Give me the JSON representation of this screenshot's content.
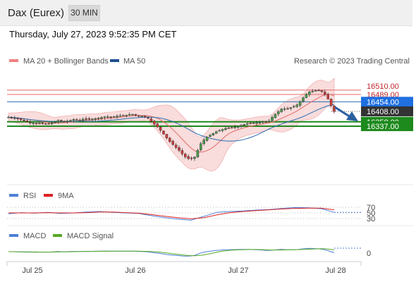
{
  "header": {
    "title": "Dax (Eurex)",
    "timeframe_button": "30 MIN",
    "timestamp": "Thursday, July 27, 2023 9:52:35 PM CET"
  },
  "legend": {
    "ma20_bb": "MA 20 + Bollinger Bands",
    "ma50": "MA 50",
    "credit": "Research © 2023 Trading Central",
    "rsi": "RSI",
    "rsi_ma": "9MA",
    "macd": "MACD",
    "macd_signal": "MACD Signal"
  },
  "colors": {
    "red_line": "#e36a6a",
    "blue_line": "#2a6fb0",
    "green_line": "#1d8a1d",
    "candle_up": "#4a9a4a",
    "candle_down": "#cc3a3a",
    "bb_fill": "#f7d0d0",
    "tag_blue": "#1f6fe0",
    "tag_dark": "#333333",
    "tag_green": "#1d8a1d",
    "arrow": "#2a5fa0"
  },
  "chart_data": [
    {
      "type": "candlestick",
      "title": "Dax (Eurex)",
      "ylim": [
        16080,
        16560
      ],
      "x_ticks": [
        "Jul 25",
        "Jul 26",
        "Jul 27",
        "Jul 28"
      ],
      "candle_count": 106,
      "close_path": [
        [
          0,
          16380
        ],
        [
          3,
          16375
        ],
        [
          6,
          16362
        ],
        [
          8,
          16355
        ],
        [
          11,
          16350
        ],
        [
          14,
          16348
        ],
        [
          17,
          16352
        ],
        [
          19,
          16365
        ],
        [
          21,
          16358
        ],
        [
          23,
          16362
        ],
        [
          25,
          16370
        ],
        [
          27,
          16365
        ],
        [
          29,
          16373
        ],
        [
          31,
          16370
        ],
        [
          33,
          16373
        ],
        [
          35,
          16378
        ],
        [
          37,
          16383
        ],
        [
          39,
          16380
        ],
        [
          41,
          16385
        ],
        [
          43,
          16388
        ],
        [
          45,
          16390
        ],
        [
          47,
          16395
        ],
        [
          49,
          16387
        ],
        [
          51,
          16385
        ],
        [
          53,
          16377
        ],
        [
          55,
          16352
        ],
        [
          57,
          16330
        ],
        [
          59,
          16300
        ],
        [
          61,
          16268
        ],
        [
          63,
          16244
        ],
        [
          65,
          16220
        ],
        [
          67,
          16192
        ],
        [
          69,
          16178
        ],
        [
          71,
          16190
        ],
        [
          73,
          16250
        ],
        [
          75,
          16280
        ],
        [
          77,
          16295
        ],
        [
          79,
          16310
        ],
        [
          81,
          16320
        ],
        [
          83,
          16328
        ],
        [
          85,
          16330
        ],
        [
          87,
          16335
        ],
        [
          89,
          16343
        ],
        [
          91,
          16350
        ],
        [
          93,
          16352
        ],
        [
          95,
          16355
        ],
        [
          97,
          16360
        ],
        [
          99,
          16358
        ],
        [
          100,
          16375
        ],
        [
          102,
          16400
        ],
        [
          104,
          16420
        ],
        [
          106,
          16420
        ],
        [
          108,
          16428
        ],
        [
          110,
          16440
        ],
        [
          112,
          16470
        ],
        [
          114,
          16500
        ],
        [
          116,
          16505
        ],
        [
          118,
          16510
        ],
        [
          120,
          16498
        ],
        [
          121,
          16480
        ],
        [
          122,
          16460
        ],
        [
          123,
          16430
        ],
        [
          124,
          16408
        ]
      ],
      "price_levels": [
        {
          "label": "16510.00",
          "value": 16510,
          "style": "red_line"
        },
        {
          "label": "16489.00",
          "value": 16489,
          "style": "red_line"
        },
        {
          "label": "16454.00",
          "value": 16454,
          "style": "tag_blue"
        },
        {
          "label": "16408.00",
          "value": 16408,
          "style": "tag_dark"
        },
        {
          "label": "16358.00",
          "value": 16358,
          "style": "green_line"
        },
        {
          "label": "16337.00",
          "value": 16337,
          "style": "green_line"
        }
      ],
      "indicators": [
        "MA 20 + Bollinger Bands",
        "MA 50"
      ]
    },
    {
      "type": "line",
      "name": "RSI panel",
      "series": [
        {
          "name": "RSI"
        },
        {
          "name": "9MA"
        }
      ],
      "y_ticks": [
        "70",
        "50",
        "30"
      ],
      "rsi_values": [
        47,
        51,
        49,
        52,
        48,
        50,
        53,
        55,
        52,
        50,
        48,
        40,
        33,
        28,
        24,
        38,
        52,
        55,
        57,
        60,
        62,
        66,
        69,
        68,
        65,
        52
      ],
      "ma9_values": [
        50,
        50,
        50,
        51,
        50,
        50,
        51,
        53,
        53,
        51,
        49,
        44,
        38,
        33,
        29,
        33,
        43,
        51,
        55,
        58,
        61,
        64,
        66,
        67,
        67,
        61
      ]
    },
    {
      "type": "line",
      "name": "MACD panel",
      "series": [
        {
          "name": "MACD"
        },
        {
          "name": "MACD Signal"
        }
      ],
      "y_ticks": [
        "0"
      ]
    }
  ]
}
